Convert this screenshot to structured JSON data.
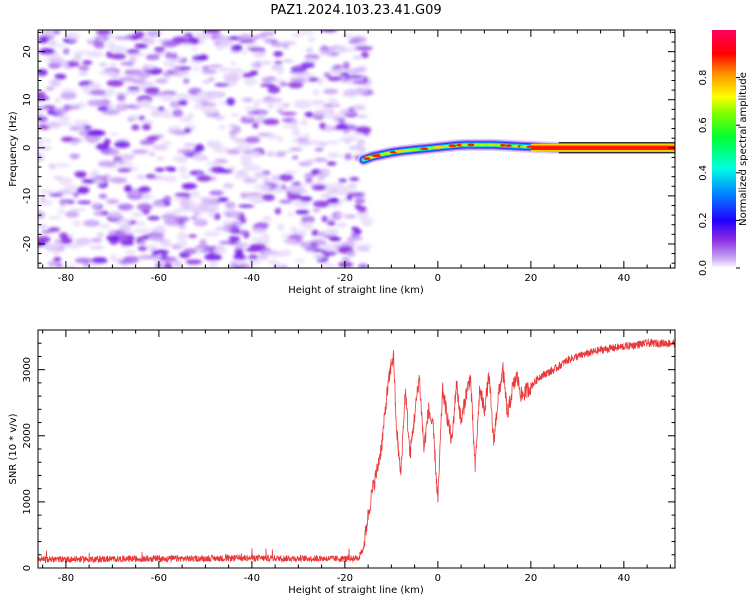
{
  "title": "PAZ1.2024.103.23.41.G09",
  "chart_data": [
    {
      "type": "heatmap",
      "xlabel": "Height of straight line (km)",
      "ylabel": "Frequency (Hz)",
      "xlim": [
        -86,
        51
      ],
      "ylim": [
        -25,
        24.5
      ],
      "xticks": [
        -80,
        -60,
        -40,
        -20,
        0,
        20,
        40
      ],
      "yticks": [
        -20,
        -10,
        0,
        10,
        20
      ],
      "signal_track": {
        "x": [
          -16,
          -14,
          -12,
          -10,
          -8,
          -6,
          -4,
          -2,
          0,
          2,
          4,
          6,
          8,
          10,
          12,
          14,
          16,
          18,
          20,
          22,
          25,
          30,
          35,
          40,
          45,
          51
        ],
        "frequency": [
          -2.5,
          -1.8,
          -1.4,
          -1.0,
          -0.7,
          -0.5,
          -0.3,
          -0.1,
          0.1,
          0.3,
          0.5,
          0.6,
          0.6,
          0.6,
          0.6,
          0.5,
          0.4,
          0.3,
          0.2,
          0.1,
          0.0,
          0.0,
          0.0,
          0.0,
          0.0,
          0.0
        ]
      },
      "colorbar": {
        "label": "Normalized spectral amplitude",
        "range": [
          0.0,
          1.0
        ],
        "ticks": [
          "0.0",
          "0.2",
          "0.4",
          "0.6",
          "0.8"
        ],
        "colormap": "gist_rainbow_r"
      }
    },
    {
      "type": "line",
      "xlabel": "Height of straight line (km)",
      "ylabel": "SNR (10 * v/v)",
      "xlim": [
        -86,
        51
      ],
      "ylim": [
        0,
        3600
      ],
      "xticks": [
        -80,
        -60,
        -40,
        -20,
        0,
        20,
        40
      ],
      "yticks": [
        0,
        1000,
        2000,
        3000
      ],
      "series": [
        {
          "color": "#e8383a",
          "x": [
            -86,
            -60,
            -40,
            -20,
            -17,
            -16,
            -15,
            -14,
            -13,
            -12,
            -11,
            -10,
            -9.5,
            -9,
            -8,
            -7,
            -6,
            -5,
            -4,
            -3,
            -2,
            -1,
            0,
            1,
            2,
            3,
            4,
            5,
            6,
            7,
            8,
            9,
            10,
            11,
            12,
            13,
            14,
            15,
            16,
            17,
            18,
            20,
            22,
            25,
            28,
            30,
            35,
            40,
            45,
            51
          ],
          "y": [
            130,
            140,
            150,
            140,
            150,
            300,
            800,
            1200,
            1500,
            1900,
            2600,
            3100,
            3200,
            2200,
            1400,
            2700,
            1700,
            2300,
            2900,
            1800,
            2400,
            2100,
            1000,
            2700,
            2300,
            1900,
            2800,
            2200,
            2600,
            2900,
            1500,
            2700,
            2400,
            2900,
            1900,
            2600,
            3000,
            2300,
            2700,
            2900,
            2600,
            2750,
            2900,
            3000,
            3150,
            3200,
            3300,
            3350,
            3400,
            3400
          ]
        }
      ]
    }
  ]
}
